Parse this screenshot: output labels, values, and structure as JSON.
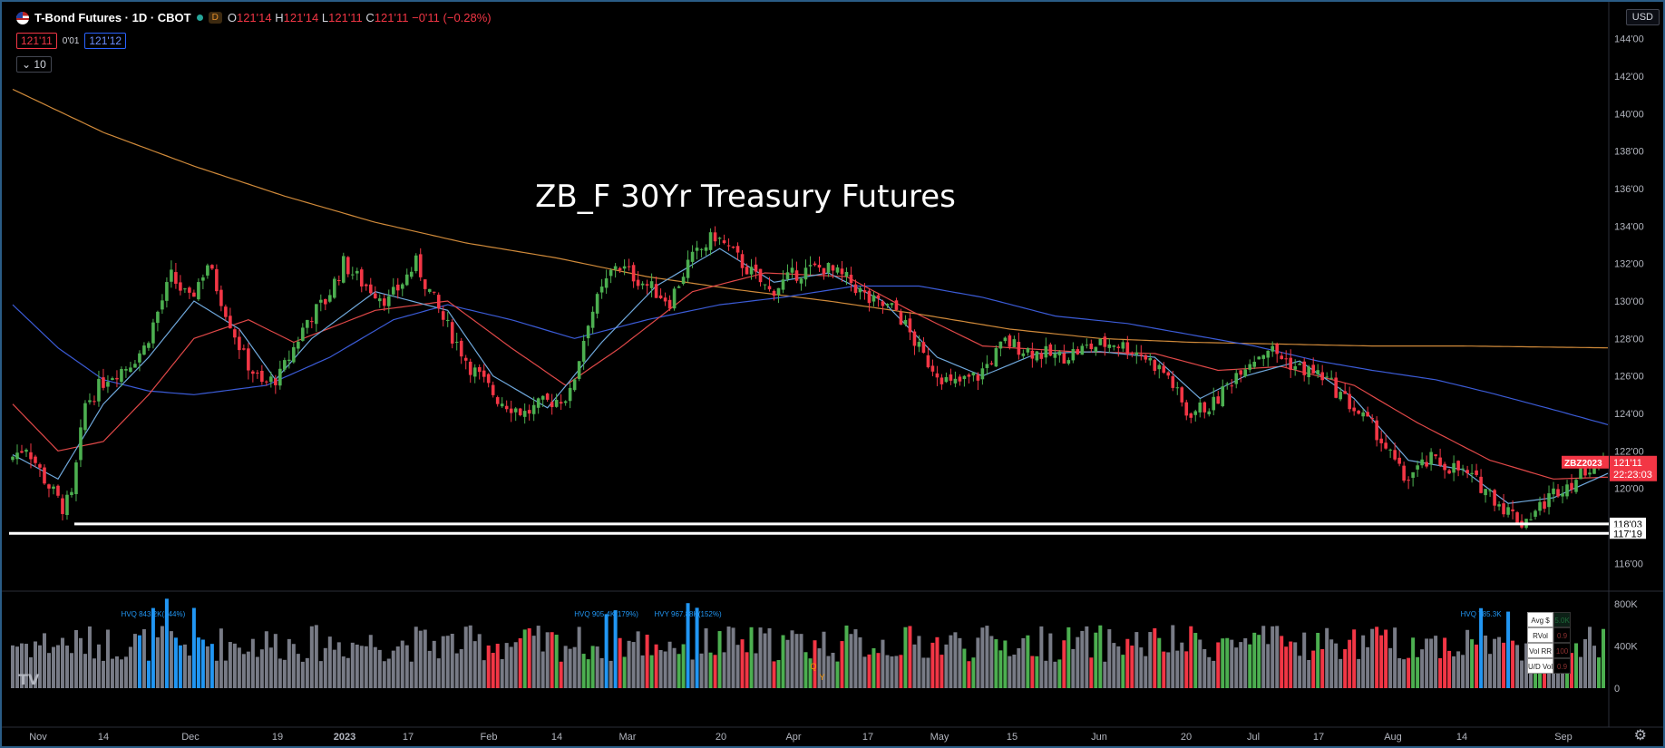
{
  "header": {
    "symbol_title": "T-Bond Futures · 1D · CBOT",
    "session_badge": "D",
    "ohlc": {
      "o_label": "O",
      "o": "121'14",
      "h_label": "H",
      "h": "121'14",
      "l_label": "L",
      "l": "121'11",
      "c_label": "C",
      "c": "121'11",
      "change": "−0'11 (−0.28%)"
    },
    "bid": "121'11",
    "spread": "0'01",
    "ask": "121'12",
    "collapse_label": "10",
    "currency": "USD"
  },
  "colors": {
    "up": "#26a69a",
    "up_candle": "#4caf50",
    "down": "#f23645",
    "ma_fast": "#6fa8dc",
    "ma_mid": "#e04848",
    "ma_slow": "#3b5bd6",
    "ma_long": "#d08a3a",
    "vol_grey": "#787b86",
    "vol_hvq": "#2196f3"
  },
  "chart_data": {
    "type": "candlestick",
    "title": "ZB_F 30Yr Treasury Futures",
    "symbol_tag": "ZBZ2023",
    "last_price": "121'11",
    "countdown": "22:23:03",
    "ylim": [
      115,
      145
    ],
    "y_ticks": [
      "144'00",
      "142'00",
      "140'00",
      "138'00",
      "136'00",
      "134'00",
      "132'00",
      "130'00",
      "128'00",
      "126'00",
      "124'00",
      "122'00",
      "120'00",
      "116'00"
    ],
    "y_tick_values": [
      144,
      142,
      140,
      138,
      136,
      134,
      132,
      130,
      128,
      126,
      124,
      122,
      120,
      116
    ],
    "x_ticks": [
      "Nov",
      "14",
      "Dec",
      "19",
      "2023",
      "17",
      "Feb",
      "14",
      "Mar",
      "20",
      "Apr",
      "17",
      "May",
      "15",
      "Jun",
      "20",
      "Jul",
      "17",
      "Aug",
      "14",
      "Sep"
    ],
    "bold_x_ticks": [
      "2023"
    ],
    "support_levels": [
      {
        "label": "118'03",
        "value": 118.1
      },
      {
        "label": "117'19",
        "value": 117.6
      }
    ],
    "price_waypoints": [
      [
        0,
        121.5
      ],
      [
        4,
        122.3
      ],
      [
        8,
        120.5
      ],
      [
        12,
        119.0
      ],
      [
        14,
        119.5
      ],
      [
        17,
        124.5
      ],
      [
        22,
        126.0
      ],
      [
        26,
        126.5
      ],
      [
        30,
        127.5
      ],
      [
        36,
        131.3
      ],
      [
        40,
        130.0
      ],
      [
        44,
        132.0
      ],
      [
        48,
        129.5
      ],
      [
        52,
        127.0
      ],
      [
        56,
        125.5
      ],
      [
        60,
        126.0
      ],
      [
        66,
        129.0
      ],
      [
        70,
        130.0
      ],
      [
        74,
        132.0
      ],
      [
        78,
        131.0
      ],
      [
        84,
        130.0
      ],
      [
        90,
        132.0
      ],
      [
        96,
        129.0
      ],
      [
        102,
        126.5
      ],
      [
        108,
        124.8
      ],
      [
        114,
        124.0
      ],
      [
        118,
        124.5
      ],
      [
        124,
        125.0
      ],
      [
        128,
        129.0
      ],
      [
        134,
        132.0
      ],
      [
        140,
        131.0
      ],
      [
        146,
        130.0
      ],
      [
        150,
        132.0
      ],
      [
        156,
        133.5
      ],
      [
        162,
        132.0
      ],
      [
        168,
        130.5
      ],
      [
        174,
        131.5
      ],
      [
        180,
        131.8
      ],
      [
        186,
        131.0
      ],
      [
        190,
        130.0
      ],
      [
        196,
        129.5
      ],
      [
        202,
        127.0
      ],
      [
        208,
        125.5
      ],
      [
        214,
        126.0
      ],
      [
        220,
        127.8
      ],
      [
        226,
        127.3
      ],
      [
        232,
        127.0
      ],
      [
        238,
        127.5
      ],
      [
        244,
        127.8
      ],
      [
        250,
        127.2
      ],
      [
        256,
        126.0
      ],
      [
        260,
        124.0
      ],
      [
        266,
        124.5
      ],
      [
        272,
        126.5
      ],
      [
        278,
        127.5
      ],
      [
        284,
        126.5
      ],
      [
        290,
        126.0
      ],
      [
        296,
        124.5
      ],
      [
        302,
        123.0
      ],
      [
        308,
        120.5
      ],
      [
        314,
        121.5
      ],
      [
        320,
        121.0
      ],
      [
        326,
        120.0
      ],
      [
        330,
        119.0
      ],
      [
        334,
        118.2
      ],
      [
        338,
        119.0
      ],
      [
        342,
        120.0
      ],
      [
        346,
        120.5
      ],
      [
        350,
        121.5
      ],
      [
        352,
        121.35
      ]
    ],
    "ma_fast_waypoints": [
      [
        0,
        121.8
      ],
      [
        10,
        120.5
      ],
      [
        20,
        124.5
      ],
      [
        30,
        127.0
      ],
      [
        40,
        130.0
      ],
      [
        50,
        128.5
      ],
      [
        58,
        125.8
      ],
      [
        66,
        128.0
      ],
      [
        80,
        130.5
      ],
      [
        96,
        129.5
      ],
      [
        106,
        126.0
      ],
      [
        118,
        124.3
      ],
      [
        130,
        127.8
      ],
      [
        142,
        130.8
      ],
      [
        156,
        132.8
      ],
      [
        168,
        131.0
      ],
      [
        180,
        131.5
      ],
      [
        192,
        130.0
      ],
      [
        204,
        127.0
      ],
      [
        214,
        126.0
      ],
      [
        226,
        127.2
      ],
      [
        240,
        127.3
      ],
      [
        252,
        127.0
      ],
      [
        262,
        124.8
      ],
      [
        272,
        126.0
      ],
      [
        284,
        126.8
      ],
      [
        296,
        124.8
      ],
      [
        308,
        121.5
      ],
      [
        320,
        121.0
      ],
      [
        330,
        119.2
      ],
      [
        340,
        119.5
      ],
      [
        352,
        120.8
      ]
    ],
    "ma_mid_waypoints": [
      [
        0,
        124.5
      ],
      [
        10,
        122.0
      ],
      [
        20,
        122.5
      ],
      [
        30,
        125.0
      ],
      [
        40,
        128.0
      ],
      [
        52,
        129.0
      ],
      [
        62,
        127.8
      ],
      [
        80,
        129.5
      ],
      [
        96,
        130.0
      ],
      [
        110,
        127.5
      ],
      [
        122,
        125.5
      ],
      [
        134,
        127.5
      ],
      [
        150,
        130.5
      ],
      [
        166,
        131.5
      ],
      [
        184,
        131.3
      ],
      [
        198,
        129.5
      ],
      [
        214,
        127.6
      ],
      [
        234,
        127.3
      ],
      [
        252,
        127.2
      ],
      [
        266,
        126.3
      ],
      [
        280,
        126.5
      ],
      [
        296,
        125.5
      ],
      [
        310,
        123.5
      ],
      [
        326,
        121.5
      ],
      [
        340,
        120.5
      ],
      [
        352,
        120.6
      ]
    ],
    "ma_slow_waypoints": [
      [
        0,
        129.8
      ],
      [
        10,
        127.5
      ],
      [
        20,
        125.8
      ],
      [
        30,
        125.2
      ],
      [
        40,
        125.0
      ],
      [
        56,
        125.5
      ],
      [
        70,
        127.0
      ],
      [
        84,
        129.0
      ],
      [
        96,
        129.8
      ],
      [
        110,
        129.0
      ],
      [
        124,
        128.0
      ],
      [
        140,
        129.0
      ],
      [
        156,
        129.8
      ],
      [
        170,
        130.2
      ],
      [
        186,
        130.8
      ],
      [
        200,
        130.8
      ],
      [
        214,
        130.2
      ],
      [
        230,
        129.2
      ],
      [
        246,
        128.8
      ],
      [
        260,
        128.2
      ],
      [
        274,
        127.6
      ],
      [
        288,
        126.8
      ],
      [
        300,
        126.3
      ],
      [
        314,
        125.8
      ],
      [
        326,
        125.1
      ],
      [
        340,
        124.2
      ],
      [
        352,
        123.4
      ]
    ],
    "ma_long_waypoints": [
      [
        0,
        141.3
      ],
      [
        20,
        139.0
      ],
      [
        40,
        137.2
      ],
      [
        60,
        135.6
      ],
      [
        80,
        134.2
      ],
      [
        100,
        133.1
      ],
      [
        120,
        132.3
      ],
      [
        140,
        131.3
      ],
      [
        160,
        130.6
      ],
      [
        180,
        130.0
      ],
      [
        200,
        129.3
      ],
      [
        220,
        128.5
      ],
      [
        240,
        128.0
      ],
      [
        260,
        127.8
      ],
      [
        280,
        127.7
      ],
      [
        300,
        127.6
      ],
      [
        320,
        127.6
      ],
      [
        352,
        127.5
      ]
    ],
    "volume": {
      "y_ticks": [
        "800K",
        "400K",
        "0"
      ],
      "y_tick_values": [
        800000,
        400000,
        0
      ],
      "annotations": [
        {
          "text": "HVQ 843.2K(144%)",
          "bar": 31
        },
        {
          "text": "HVQ 905.4K(179%)",
          "bar": 131
        },
        {
          "text": "HVY 967.88K(152%)",
          "bar": 149
        },
        {
          "text": "HVQ 785.3K",
          "bar": 324
        }
      ],
      "qy_marker": [
        "Q",
        "Y"
      ]
    },
    "stats_table": [
      {
        "label": "Avg $ Vol",
        "value": "5.0K"
      },
      {
        "label": "RVol",
        "value": "0.9"
      },
      {
        "label": "Vol RR",
        "value": "100 %"
      },
      {
        "label": "U/D Vol",
        "value": "0.9"
      }
    ]
  }
}
